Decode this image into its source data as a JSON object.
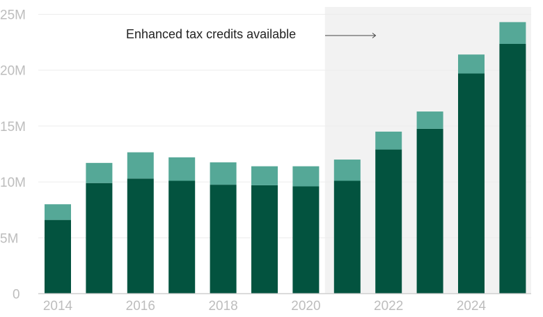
{
  "chart_data": {
    "type": "bar",
    "stacked": true,
    "categories": [
      "2014",
      "2015",
      "2016",
      "2017",
      "2018",
      "2019",
      "2020",
      "2021",
      "2022",
      "2023",
      "2024",
      "2025"
    ],
    "series": [
      {
        "color": "#03533f",
        "values": [
          6.6,
          9.9,
          10.3,
          10.1,
          9.75,
          9.7,
          9.6,
          10.1,
          12.9,
          14.75,
          19.7,
          22.35
        ]
      },
      {
        "color": "#55a897",
        "values": [
          1.4,
          1.8,
          2.35,
          2.1,
          2.0,
          1.7,
          1.8,
          1.9,
          1.6,
          1.55,
          1.7,
          1.95
        ]
      }
    ],
    "unit": "M",
    "ylim": [
      0,
      25
    ],
    "y_ticks": [
      "0",
      "5M",
      "10M",
      "15M",
      "20M",
      "25M"
    ],
    "y_tick_values": [
      0,
      5,
      10,
      15,
      20,
      25
    ],
    "x_tick_labels": [
      "2014",
      "2016",
      "2018",
      "2020",
      "2022",
      "2024"
    ],
    "grid": true,
    "highlight_range": [
      "2021",
      "2025"
    ],
    "highlight_color": "#f2f2f2",
    "annotation": "Enhanced tax credits available",
    "title": "",
    "xlabel": "",
    "ylabel": ""
  }
}
